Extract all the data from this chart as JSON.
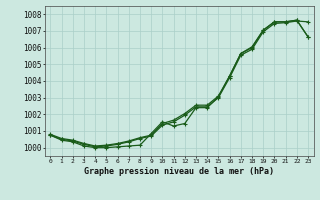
{
  "xlabel": "Graphe pression niveau de la mer (hPa)",
  "bg_color": "#cce8e0",
  "grid_color": "#aacfc8",
  "line_color": "#1a5c1a",
  "xlim": [
    -0.5,
    23.5
  ],
  "ylim": [
    999.5,
    1008.5
  ],
  "yticks": [
    1000,
    1001,
    1002,
    1003,
    1004,
    1005,
    1006,
    1007,
    1008
  ],
  "xticks": [
    0,
    1,
    2,
    3,
    4,
    5,
    6,
    7,
    8,
    9,
    10,
    11,
    12,
    13,
    14,
    15,
    16,
    17,
    18,
    19,
    20,
    21,
    22,
    23
  ],
  "line_smooth1": [
    1000.8,
    1000.55,
    1000.45,
    1000.25,
    1000.1,
    1000.15,
    1000.25,
    1000.4,
    1000.6,
    1000.75,
    1001.45,
    1001.65,
    1002.05,
    1002.55,
    1002.55,
    1003.1,
    1004.3,
    1005.65,
    1006.0,
    1007.05,
    1007.55,
    1007.55,
    1007.65,
    1006.65
  ],
  "line_smooth2": [
    1000.75,
    1000.5,
    1000.4,
    1000.2,
    1000.05,
    1000.1,
    1000.2,
    1000.35,
    1000.55,
    1000.7,
    1001.35,
    1001.55,
    1001.95,
    1002.45,
    1002.45,
    1003.0,
    1004.2,
    1005.55,
    1005.9,
    1006.95,
    1007.45,
    1007.5,
    1007.6,
    1007.55
  ],
  "line_jagged": [
    1000.75,
    1000.45,
    1000.35,
    1000.1,
    1000.0,
    1000.0,
    1000.05,
    1000.1,
    1000.15,
    1000.85,
    1001.55,
    1001.3,
    1001.45,
    1002.4,
    1002.4,
    1003.05,
    1004.3,
    1005.65,
    1006.05,
    1007.05,
    1007.55,
    1007.55,
    1007.65,
    1006.65
  ]
}
